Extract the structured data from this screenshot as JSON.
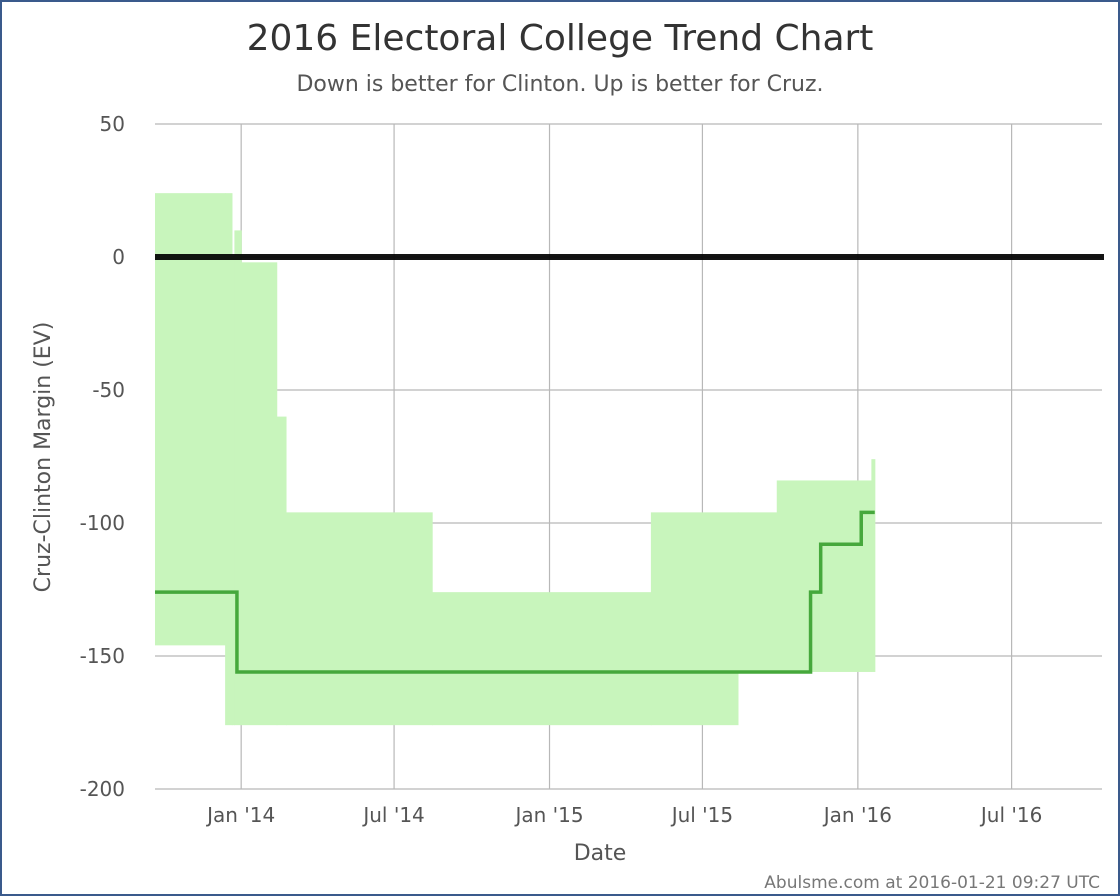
{
  "chart_data": {
    "type": "line",
    "title": "2016 Electoral College Trend Chart",
    "subtitle": "Down is better for Clinton. Up is better for Cruz.",
    "xlabel": "Date",
    "ylabel": "Cruz-Clinton Margin (EV)",
    "credit": "Abulsme.com at 2016-01-21 09:27 UTC",
    "ylim": [
      -200,
      50
    ],
    "xlim": [
      "2013-09-21",
      "2016-10-16"
    ],
    "y_ticks": [
      50,
      0,
      -50,
      -100,
      -150,
      -200
    ],
    "x_ticks": [
      {
        "date": "2014-01-01",
        "label": "Jan '14"
      },
      {
        "date": "2014-07-01",
        "label": "Jul '14"
      },
      {
        "date": "2015-01-01",
        "label": "Jan '15"
      },
      {
        "date": "2015-07-01",
        "label": "Jul '15"
      },
      {
        "date": "2016-01-01",
        "label": "Jan '16"
      },
      {
        "date": "2016-07-01",
        "label": "Jul '16"
      }
    ],
    "grid": true,
    "reference_line": {
      "y": 0,
      "color": "#000000"
    },
    "colors": {
      "band_fill": "#c8f5bc",
      "line": "#46a83c",
      "zero_line": "#000000"
    },
    "series": [
      {
        "role": "range",
        "segments": [
          {
            "start": "2013-09-21",
            "end": "2013-12-13",
            "low": -146,
            "high": 24
          },
          {
            "start": "2013-12-13",
            "end": "2013-12-21",
            "low": -176,
            "high": 24
          },
          {
            "start": "2013-12-21",
            "end": "2013-12-24",
            "low": -176,
            "high": 0
          },
          {
            "start": "2013-12-24",
            "end": "2014-01-01",
            "low": -176,
            "high": 10
          },
          {
            "start": "2014-01-01",
            "end": "2014-02-12",
            "low": -176,
            "high": -2
          },
          {
            "start": "2014-02-12",
            "end": "2014-02-23",
            "low": -176,
            "high": -60
          },
          {
            "start": "2014-02-23",
            "end": "2014-08-15",
            "low": -176,
            "high": -96
          },
          {
            "start": "2014-08-15",
            "end": "2015-05-01",
            "low": -176,
            "high": -126
          },
          {
            "start": "2015-05-01",
            "end": "2015-08-12",
            "low": -176,
            "high": -96
          },
          {
            "start": "2015-08-12",
            "end": "2015-09-27",
            "low": -156,
            "high": -96
          },
          {
            "start": "2015-09-27",
            "end": "2016-01-17",
            "low": -156,
            "high": -84
          },
          {
            "start": "2016-01-17",
            "end": "2016-01-21",
            "low": -156,
            "high": -76
          }
        ]
      },
      {
        "role": "expected",
        "steps": [
          {
            "date": "2013-09-21",
            "value": -126
          },
          {
            "date": "2013-12-27",
            "value": -156
          },
          {
            "date": "2015-11-06",
            "value": -126
          },
          {
            "date": "2015-11-18",
            "value": -108
          },
          {
            "date": "2016-01-05",
            "value": -96
          }
        ],
        "end": "2016-01-21"
      }
    ]
  }
}
